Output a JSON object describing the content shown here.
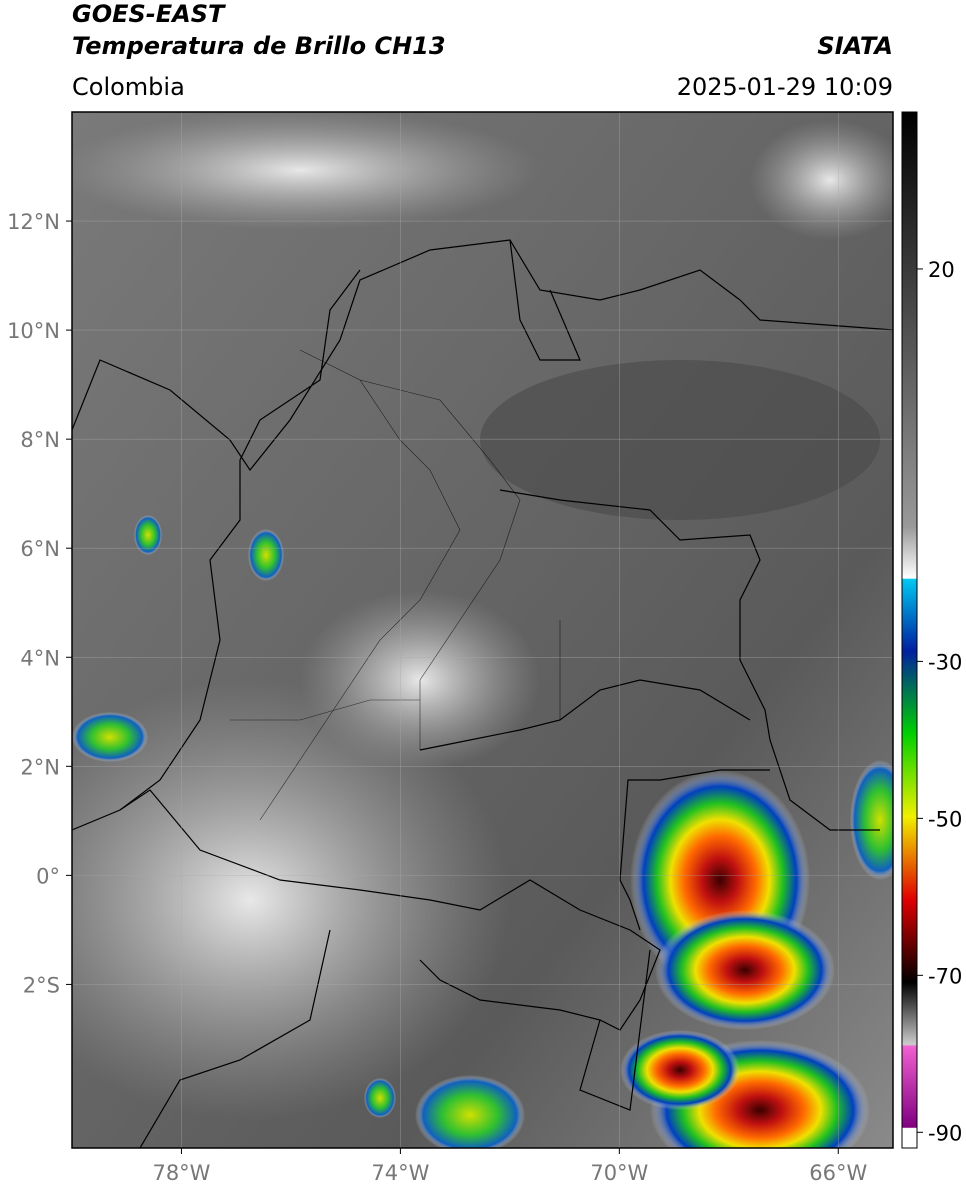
{
  "header": {
    "title": "GOES-EAST",
    "subtitle": "Temperatura de Brillo CH13",
    "region": "Colombia",
    "source": "SIATA",
    "datetime": "2025-01-29 10:09"
  },
  "map": {
    "lonlim": [
      -80,
      -65
    ],
    "latlim": [
      -5,
      14
    ],
    "lon_ticks": [
      {
        "value": -78,
        "label": "78°W"
      },
      {
        "value": -74,
        "label": "74°W"
      },
      {
        "value": -70,
        "label": "70°W"
      },
      {
        "value": -66,
        "label": "66°W"
      }
    ],
    "lat_ticks": [
      {
        "value": 12,
        "label": "12°N"
      },
      {
        "value": 10,
        "label": "10°N"
      },
      {
        "value": 8,
        "label": "8°N"
      },
      {
        "value": 6,
        "label": "6°N"
      },
      {
        "value": 4,
        "label": "4°N"
      },
      {
        "value": 2,
        "label": "2°N"
      },
      {
        "value": 0,
        "label": "0°"
      },
      {
        "value": -2,
        "label": "2°S"
      }
    ],
    "grid": true
  },
  "colorbar": {
    "range": [
      -92,
      40
    ],
    "ticks": [
      20,
      -30,
      -50,
      -70,
      -90
    ]
  }
}
